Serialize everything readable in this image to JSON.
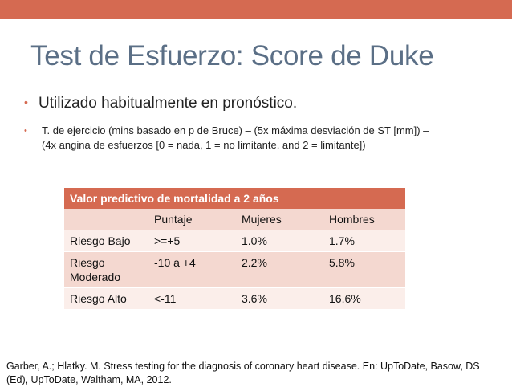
{
  "slide": {
    "title": "Test de Esfuerzo: Score de Duke",
    "bullets": [
      "Utilizado habitualmente en pronóstico.",
      "T. de ejercicio (mins basado en p de Bruce)  – (5x máxima desviación de ST [mm]) –",
      "(4x angina de esfuerzos [0 = nada, 1 = no limitante, and 2 = limitante])"
    ],
    "bullet_glyph": "•",
    "accent_color": "#d56a51",
    "title_color": "#5b6f86"
  },
  "table": {
    "header": "Valor predictivo de mortalidad a 2 años",
    "columns": [
      "",
      "Puntaje",
      "Mujeres",
      "Hombres"
    ],
    "rows": [
      [
        "Riesgo Bajo",
        ">=+5",
        "1.0%",
        "1.7%"
      ],
      [
        "Riesgo\nModerado",
        "-10 a +4",
        "2.2%",
        "5.8%"
      ],
      [
        "Riesgo Alto",
        "<-11",
        "3.6%",
        "16.6%"
      ]
    ]
  },
  "citation": "Garber, A.; Hlatky. M. Stress testing for the diagnosis of coronary heart disease. En: UpToDate, Basow, DS (Ed), UpToDate, Waltham, MA, 2012."
}
